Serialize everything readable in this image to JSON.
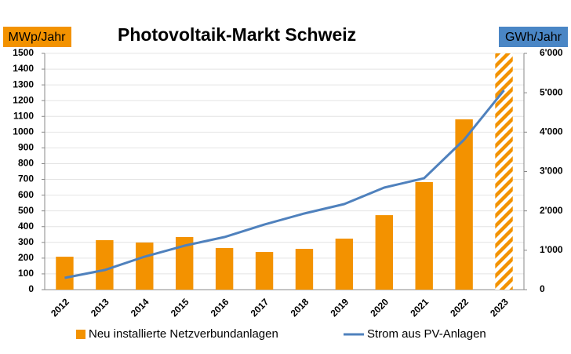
{
  "chart_data": {
    "type": "bar",
    "title": "Photovoltaik-Markt Schweiz",
    "y_label": "MWp/Jahr",
    "y2_label": "GWh/Jahr",
    "categories": [
      "2012",
      "2013",
      "2014",
      "2015",
      "2016",
      "2017",
      "2018",
      "2019",
      "2020",
      "2021",
      "2022",
      "2023"
    ],
    "series": [
      {
        "name": "Neu installierte Netzverbundanlagen",
        "type": "bar",
        "color": "#f39200",
        "values": [
          209,
          314,
          299,
          334,
          264,
          239,
          259,
          324,
          473,
          683,
          1081,
          1500
        ],
        "hatched_categories": [
          "2023"
        ]
      },
      {
        "name": "Strom aus PV-Anlagen",
        "type": "line",
        "axis": "y2",
        "color": "#4f81bd",
        "values": [
          299,
          498,
          837,
          1116,
          1335,
          1654,
          1934,
          2173,
          2591,
          2830,
          3807,
          5063
        ]
      }
    ],
    "ylim": [
      0,
      1500
    ],
    "yticks": [
      0,
      100,
      200,
      300,
      400,
      500,
      600,
      700,
      800,
      900,
      1000,
      1100,
      1200,
      1300,
      1400,
      1500
    ],
    "y2lim": [
      0,
      6000
    ],
    "y2ticks": [
      0,
      {
        "value": 1000,
        "label": "1'000"
      },
      {
        "value": 2000,
        "label": "2'000"
      },
      {
        "value": 3000,
        "label": "3'000"
      },
      {
        "value": 4000,
        "label": "4'000"
      },
      {
        "value": 5000,
        "label": "5'000"
      },
      {
        "value": 6000,
        "label": "6'000"
      }
    ],
    "grid": true,
    "legend": "bottom",
    "y_label_color": "#f39200",
    "y2_label_color": "#4a86c5"
  }
}
